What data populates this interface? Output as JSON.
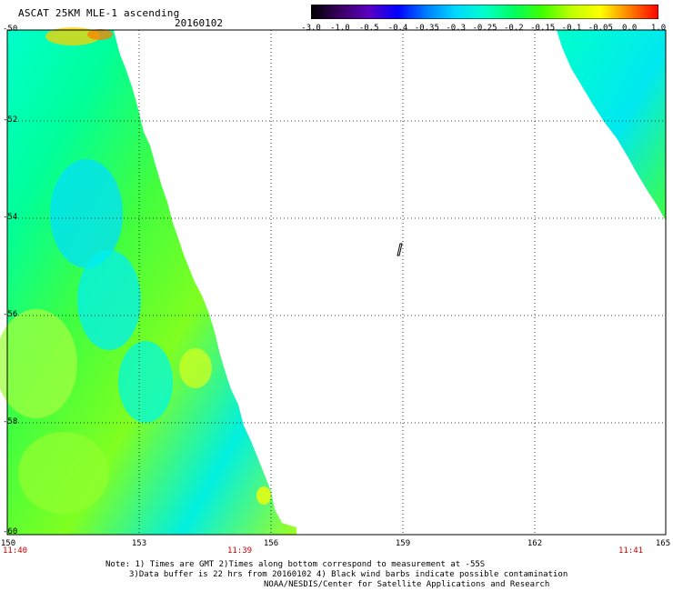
{
  "header": {
    "title": "ASCAT 25KM MLE-1 ascending",
    "date": "20160102"
  },
  "colorbar": {
    "labels": [
      "-3.0",
      "-1.0",
      "-0.5",
      "-0.4",
      "-0.35",
      "-0.3",
      "-0.25",
      "-0.2",
      "-0.15",
      "-0.1",
      "-0.05",
      "0.0",
      "1.0"
    ],
    "colors": [
      "#000000",
      "#3a0060",
      "#5a00c0",
      "#0000ff",
      "#0080ff",
      "#00d8ff",
      "#00ffcc",
      "#00ff60",
      "#40ff00",
      "#c0ff00",
      "#ffff00",
      "#ff8000",
      "#ff0000"
    ]
  },
  "map": {
    "lat_labels": [
      "-50",
      "-52",
      "-54",
      "-56",
      "-58",
      "-60"
    ],
    "lon_labels": [
      "150",
      "153",
      "156",
      "159",
      "162",
      "165"
    ],
    "times": [
      "11:40",
      "11:39",
      "11:41"
    ],
    "fill_colors": [
      "#00ffcc",
      "#00ff99",
      "#40ff40",
      "#80ff20",
      "#00f0e0",
      "#a0ff20"
    ]
  },
  "notes": {
    "line1": "Note: 1) Times are GMT 2)Times along bottom correspond to measurement at -55S",
    "line2": "3)Data buffer is 22 hrs from 20160102 4) Black wind barbs indicate possible contamination",
    "line3": "NOAA/NESDIS/Center for Satellite Applications and Research"
  }
}
